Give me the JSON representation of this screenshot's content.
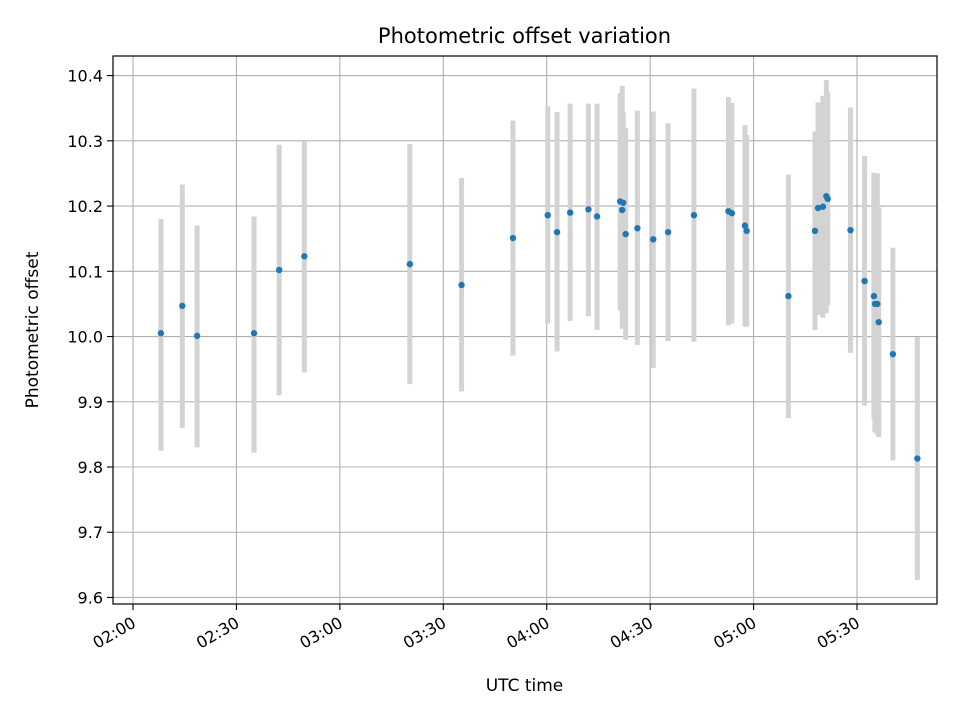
{
  "chart_data": {
    "type": "scatter",
    "title": "Photometric offset variation",
    "xlabel": "UTC time",
    "ylabel": "Photometric offset",
    "xlim_minutes": [
      114.2,
      353.2
    ],
    "ylim": [
      9.59,
      10.43
    ],
    "x_ticks": [
      {
        "minute": 120,
        "label": "02:00"
      },
      {
        "minute": 150,
        "label": "02:30"
      },
      {
        "minute": 180,
        "label": "03:00"
      },
      {
        "minute": 210,
        "label": "03:30"
      },
      {
        "minute": 240,
        "label": "04:00"
      },
      {
        "minute": 270,
        "label": "04:30"
      },
      {
        "minute": 300,
        "label": "05:00"
      },
      {
        "minute": 330,
        "label": "05:30"
      }
    ],
    "y_ticks": [
      {
        "value": 9.6,
        "label": "9.6"
      },
      {
        "value": 9.7,
        "label": "9.7"
      },
      {
        "value": 9.8,
        "label": "9.8"
      },
      {
        "value": 9.9,
        "label": "9.9"
      },
      {
        "value": 10.0,
        "label": "10.0"
      },
      {
        "value": 10.1,
        "label": "10.1"
      },
      {
        "value": 10.2,
        "label": "10.2"
      },
      {
        "value": 10.3,
        "label": "10.3"
      },
      {
        "value": 10.4,
        "label": "10.4"
      }
    ],
    "grid": true,
    "colors": {
      "point": "#1f77b4",
      "errorbar": "#d3d3d3",
      "grid": "#b0b0b0",
      "axes": "#000000"
    },
    "series": [
      {
        "name": "photometric offset",
        "points": [
          {
            "minute": 128.1,
            "y": 10.005,
            "lo": 9.825,
            "hi": 10.18
          },
          {
            "minute": 134.3,
            "y": 10.047,
            "lo": 9.86,
            "hi": 10.233
          },
          {
            "minute": 138.6,
            "y": 10.001,
            "lo": 9.83,
            "hi": 10.17
          },
          {
            "minute": 155.1,
            "y": 10.005,
            "lo": 9.822,
            "hi": 10.184
          },
          {
            "minute": 162.4,
            "y": 10.102,
            "lo": 9.91,
            "hi": 10.294
          },
          {
            "minute": 169.7,
            "y": 10.123,
            "lo": 9.945,
            "hi": 10.3
          },
          {
            "minute": 200.3,
            "y": 10.111,
            "lo": 9.927,
            "hi": 10.295
          },
          {
            "minute": 215.3,
            "y": 10.079,
            "lo": 9.916,
            "hi": 10.243
          },
          {
            "minute": 230.2,
            "y": 10.151,
            "lo": 9.971,
            "hi": 10.331
          },
          {
            "minute": 240.3,
            "y": 10.186,
            "lo": 10.02,
            "hi": 10.353
          },
          {
            "minute": 243.0,
            "y": 10.16,
            "lo": 9.977,
            "hi": 10.344
          },
          {
            "minute": 246.8,
            "y": 10.19,
            "lo": 10.024,
            "hi": 10.357
          },
          {
            "minute": 252.1,
            "y": 10.195,
            "lo": 10.031,
            "hi": 10.357
          },
          {
            "minute": 254.6,
            "y": 10.184,
            "lo": 10.01,
            "hi": 10.357
          },
          {
            "minute": 261.3,
            "y": 10.207,
            "lo": 10.04,
            "hi": 10.373
          },
          {
            "minute": 261.9,
            "y": 10.194,
            "lo": 10.012,
            "hi": 10.384
          },
          {
            "minute": 262.2,
            "y": 10.205,
            "lo": 10.02,
            "hi": 10.345
          },
          {
            "minute": 262.9,
            "y": 10.157,
            "lo": 9.995,
            "hi": 10.32
          },
          {
            "minute": 266.3,
            "y": 10.166,
            "lo": 9.987,
            "hi": 10.346
          },
          {
            "minute": 270.9,
            "y": 10.149,
            "lo": 9.952,
            "hi": 10.345
          },
          {
            "minute": 275.2,
            "y": 10.16,
            "lo": 9.993,
            "hi": 10.327
          },
          {
            "minute": 282.7,
            "y": 10.186,
            "lo": 9.992,
            "hi": 10.38
          },
          {
            "minute": 292.7,
            "y": 10.192,
            "lo": 10.017,
            "hi": 10.367
          },
          {
            "minute": 293.7,
            "y": 10.189,
            "lo": 10.02,
            "hi": 10.358
          },
          {
            "minute": 297.5,
            "y": 10.17,
            "lo": 10.016,
            "hi": 10.324
          },
          {
            "minute": 298.0,
            "y": 10.162,
            "lo": 10.015,
            "hi": 10.309
          },
          {
            "minute": 310.1,
            "y": 10.062,
            "lo": 9.875,
            "hi": 10.248
          },
          {
            "minute": 317.8,
            "y": 10.162,
            "lo": 10.01,
            "hi": 10.314
          },
          {
            "minute": 318.7,
            "y": 10.197,
            "lo": 10.033,
            "hi": 10.359
          },
          {
            "minute": 320.1,
            "y": 10.199,
            "lo": 10.029,
            "hi": 10.369
          },
          {
            "minute": 321.1,
            "y": 10.215,
            "lo": 10.036,
            "hi": 10.393
          },
          {
            "minute": 321.5,
            "y": 10.211,
            "lo": 10.048,
            "hi": 10.374
          },
          {
            "minute": 328.1,
            "y": 10.163,
            "lo": 9.975,
            "hi": 10.351
          },
          {
            "minute": 332.2,
            "y": 10.085,
            "lo": 9.894,
            "hi": 10.277
          },
          {
            "minute": 334.9,
            "y": 10.062,
            "lo": 9.874,
            "hi": 10.251
          },
          {
            "minute": 335.2,
            "y": 10.05,
            "lo": 9.853,
            "hi": 10.248
          },
          {
            "minute": 335.9,
            "y": 10.05,
            "lo": 9.85,
            "hi": 10.25
          },
          {
            "minute": 336.3,
            "y": 10.022,
            "lo": 9.846,
            "hi": 10.198
          },
          {
            "minute": 340.4,
            "y": 9.973,
            "lo": 9.81,
            "hi": 10.136
          },
          {
            "minute": 347.5,
            "y": 9.813,
            "lo": 9.627,
            "hi": 9.999
          }
        ]
      }
    ]
  }
}
